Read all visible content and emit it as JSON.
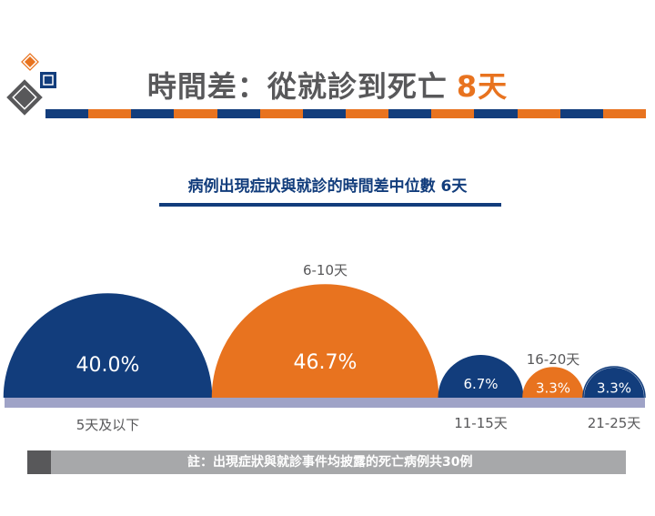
{
  "title": {
    "main": "時間差：從就診到死亡",
    "highlight": "8天"
  },
  "subtitle": "病例出現症狀與就診的時間差中位數  6天",
  "note": "註：出現症狀與就診事件均披露的死亡病例共30例",
  "colors": {
    "navy": "#123d7c",
    "orange": "#e8731f",
    "gray": "#58585a",
    "lightgray": "#a7a8aa",
    "baseline": "#9fa3c7"
  },
  "chart_data": {
    "type": "semicircle-proportion",
    "categories": [
      "5天及以下",
      "6-10天",
      "11-15天",
      "16-20天",
      "21-25天"
    ],
    "values": [
      40.0,
      46.7,
      6.7,
      3.3,
      3.3
    ],
    "value_labels": [
      "40.0%",
      "46.7%",
      "6.7%",
      "3.3%",
      "3.3%"
    ],
    "series_colors": [
      "#123d7c",
      "#e8731f",
      "#123d7c",
      "#e8731f",
      "#123d7c"
    ],
    "unit": "%"
  }
}
